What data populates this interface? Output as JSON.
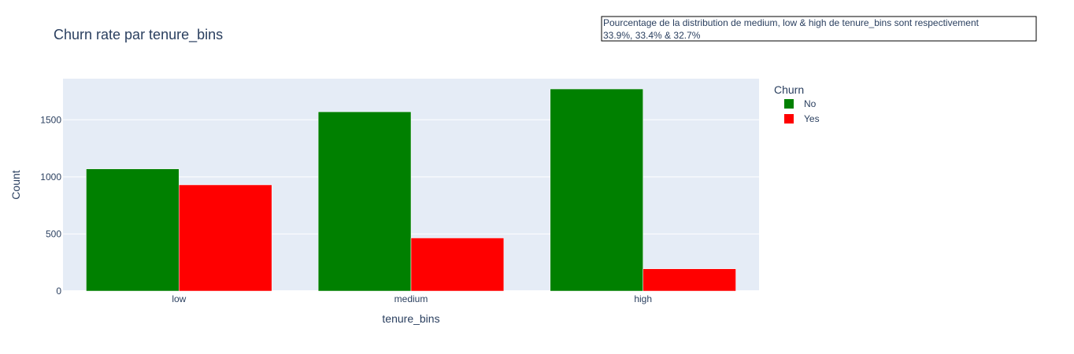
{
  "chart_data": {
    "type": "bar",
    "title": "Churn rate par tenure_bins",
    "xlabel": "tenure_bins",
    "ylabel": "Count",
    "categories": [
      "low",
      "medium",
      "high"
    ],
    "series": [
      {
        "name": "No",
        "values": [
          1070,
          1570,
          1770
        ],
        "color": "#008000"
      },
      {
        "name": "Yes",
        "values": [
          930,
          465,
          195
        ],
        "color": "#ff0000"
      }
    ],
    "ylim": [
      0,
      1860
    ],
    "yticks": [
      0,
      500,
      1000,
      1500
    ],
    "legend": {
      "title": "Churn",
      "placement": "top-right"
    },
    "annotation": {
      "lines": [
        "Pourcentage de la distribution de medium, low & high de tenure_bins sont respectivement",
        "33.9%, 33.4% & 32.7%"
      ]
    },
    "grid": true,
    "plot_background": "#e5ecf6"
  }
}
